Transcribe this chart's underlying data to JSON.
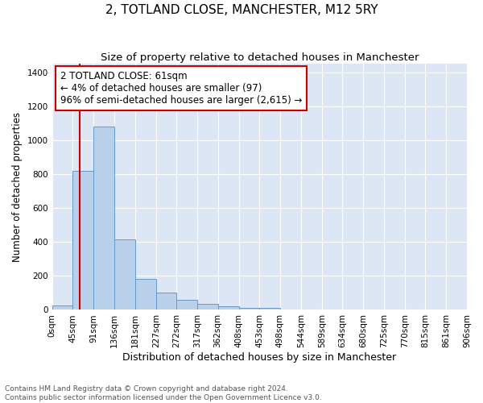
{
  "title": "2, TOTLAND CLOSE, MANCHESTER, M12 5RY",
  "subtitle": "Size of property relative to detached houses in Manchester",
  "xlabel": "Distribution of detached houses by size in Manchester",
  "ylabel": "Number of detached properties",
  "annotation_title": "2 TOTLAND CLOSE: 61sqm",
  "annotation_line2": "← 4% of detached houses are smaller (97)",
  "annotation_line3": "96% of semi-detached houses are larger (2,615) →",
  "footer_line1": "Contains HM Land Registry data © Crown copyright and database right 2024.",
  "footer_line2": "Contains public sector information licensed under the Open Government Licence v3.0.",
  "bar_values": [
    25,
    820,
    1080,
    415,
    183,
    100,
    57,
    35,
    22,
    13,
    13,
    0,
    0,
    0,
    0,
    0,
    0,
    0,
    0,
    0
  ],
  "bin_edges": [
    0,
    45,
    91,
    136,
    181,
    227,
    272,
    317,
    362,
    408,
    453,
    498,
    544,
    589,
    634,
    680,
    725,
    770,
    815,
    861,
    906
  ],
  "tick_labels": [
    "0sqm",
    "45sqm",
    "91sqm",
    "136sqm",
    "181sqm",
    "227sqm",
    "272sqm",
    "317sqm",
    "362sqm",
    "408sqm",
    "453sqm",
    "498sqm",
    "544sqm",
    "589sqm",
    "634sqm",
    "680sqm",
    "725sqm",
    "770sqm",
    "815sqm",
    "861sqm",
    "906sqm"
  ],
  "ylim": [
    0,
    1450
  ],
  "yticks": [
    0,
    200,
    400,
    600,
    800,
    1000,
    1200,
    1400
  ],
  "property_line_x": 61,
  "bar_color": "#b8d0ea",
  "bar_edge_color": "#6699cc",
  "vline_color": "#cc0000",
  "annotation_box_color": "#cc0000",
  "background_color": "#dce6f5",
  "grid_color": "#ffffff",
  "title_fontsize": 11,
  "subtitle_fontsize": 9.5,
  "xlabel_fontsize": 9,
  "ylabel_fontsize": 8.5,
  "tick_fontsize": 7.5,
  "annotation_fontsize": 8.5,
  "footer_fontsize": 6.5
}
